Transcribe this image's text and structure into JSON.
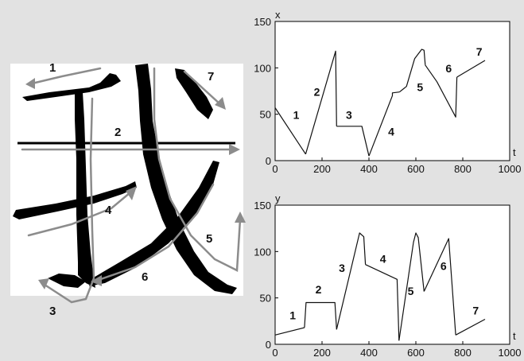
{
  "figure": {
    "stroke_order_labels": [
      "1",
      "2",
      "3",
      "4",
      "5",
      "6",
      "7"
    ],
    "colors": {
      "background": "#e2e2e2",
      "panel": "#ffffff",
      "ink": "#000000",
      "arrow": "#8c8c8c",
      "line": "#111111"
    }
  },
  "chart_data": [
    {
      "type": "line",
      "ylabel": "x",
      "xlabel": "t",
      "xlim": [
        0,
        1000
      ],
      "ylim": [
        0,
        150
      ],
      "xticks": [
        0,
        200,
        400,
        600,
        800,
        1000
      ],
      "yticks": [
        0,
        50,
        100,
        150
      ],
      "grid": false,
      "series": [
        {
          "values": [
            [
              0,
              57
            ],
            [
              130,
              7
            ]
          ]
        },
        {
          "values": [
            [
              130,
              7
            ],
            [
              258,
              118
            ],
            [
              262,
              37
            ]
          ]
        },
        {
          "values": [
            [
              262,
              37
            ],
            [
              370,
              37
            ],
            [
              400,
              5
            ]
          ]
        },
        {
          "values": [
            [
              400,
              5
            ],
            [
              500,
              70
            ],
            [
              500,
              73
            ],
            [
              530,
              74
            ]
          ]
        },
        {
          "values": [
            [
              530,
              74
            ],
            [
              560,
              80
            ],
            [
              595,
              110
            ],
            [
              625,
              120
            ],
            [
              635,
              119
            ],
            [
              640,
              103
            ]
          ]
        },
        {
          "values": [
            [
              640,
              103
            ],
            [
              690,
              85
            ],
            [
              770,
              47
            ],
            [
              775,
              90
            ]
          ]
        },
        {
          "values": [
            [
              775,
              90
            ],
            [
              895,
              108
            ]
          ]
        }
      ],
      "annotations": [
        {
          "text": "1",
          "x": 90,
          "y": 45
        },
        {
          "text": "2",
          "x": 178,
          "y": 70
        },
        {
          "text": "3",
          "x": 315,
          "y": 45
        },
        {
          "text": "4",
          "x": 495,
          "y": 27
        },
        {
          "text": "5",
          "x": 618,
          "y": 75
        },
        {
          "text": "6",
          "x": 740,
          "y": 95
        },
        {
          "text": "7",
          "x": 870,
          "y": 113
        }
      ]
    },
    {
      "type": "line",
      "ylabel": "y",
      "xlabel": "t",
      "xlim": [
        0,
        1000
      ],
      "ylim": [
        0,
        150
      ],
      "xticks": [
        0,
        200,
        400,
        600,
        800,
        1000
      ],
      "yticks": [
        0,
        50,
        100,
        150
      ],
      "grid": false,
      "series": [
        {
          "values": [
            [
              0,
              10
            ],
            [
              125,
              18
            ]
          ]
        },
        {
          "values": [
            [
              125,
              18
            ],
            [
              132,
              45
            ],
            [
              255,
              45
            ],
            [
              262,
              16
            ]
          ]
        },
        {
          "values": [
            [
              262,
              16
            ],
            [
              360,
              120
            ],
            [
              378,
              116
            ],
            [
              385,
              86
            ]
          ]
        },
        {
          "values": [
            [
              385,
              86
            ],
            [
              520,
              70
            ],
            [
              528,
              4
            ]
          ]
        },
        {
          "values": [
            [
              528,
              4
            ],
            [
              590,
              110
            ],
            [
              600,
              120
            ],
            [
              610,
              115
            ],
            [
              635,
              57
            ]
          ]
        },
        {
          "values": [
            [
              635,
              57
            ],
            [
              740,
              114
            ],
            [
              770,
              10
            ]
          ]
        },
        {
          "values": [
            [
              770,
              10
            ],
            [
              895,
              27
            ]
          ]
        }
      ],
      "annotations": [
        {
          "text": "1",
          "x": 75,
          "y": 27
        },
        {
          "text": "2",
          "x": 185,
          "y": 55
        },
        {
          "text": "3",
          "x": 285,
          "y": 78
        },
        {
          "text": "4",
          "x": 460,
          "y": 88
        },
        {
          "text": "5",
          "x": 578,
          "y": 53
        },
        {
          "text": "6",
          "x": 718,
          "y": 80
        },
        {
          "text": "7",
          "x": 855,
          "y": 32
        }
      ]
    }
  ]
}
